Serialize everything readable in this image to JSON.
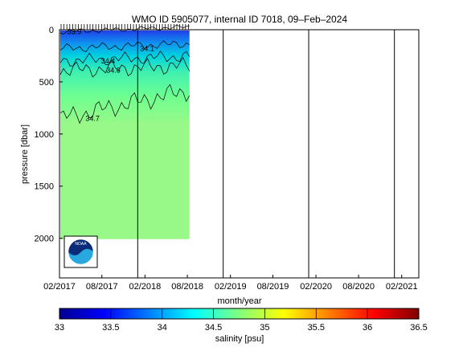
{
  "chart_data": {
    "type": "heatmap",
    "title": "WMO ID 5905077, internal ID 7018, 09–Feb–2024",
    "xlabel": "month/year",
    "ylabel": "pressure [dbar]",
    "xlim": [
      "2017-02-01",
      "2021-04-15"
    ],
    "ylim": [
      2380,
      0
    ],
    "x_ticks": [
      "02/2017",
      "08/2017",
      "02/2018",
      "08/2018",
      "02/2019",
      "08/2019",
      "02/2020",
      "08/2020",
      "02/2021"
    ],
    "y_ticks": [
      0,
      500,
      1000,
      1500,
      2000
    ],
    "year_boundaries": [
      "2018-01-01",
      "2019-01-01",
      "2020-01-01",
      "2021-01-01"
    ],
    "data_extent": {
      "start": "2017-02-01",
      "end": "2018-08-10",
      "max_pressure": 2000
    },
    "contours": [
      {
        "label": "33.9",
        "pressure": 20
      },
      {
        "label": "34.1",
        "pressure": 180
      },
      {
        "label": "34.4",
        "pressure": 300
      },
      {
        "label": "34.6",
        "pressure": 390
      },
      {
        "label": "34.7",
        "pressure": 850
      }
    ],
    "colorbar": {
      "label": "salinity [psu]",
      "min": 33,
      "max": 36.5,
      "ticks": [
        "33",
        "33.5",
        "34",
        "34.5",
        "35",
        "35.5",
        "36",
        "36.5"
      ]
    }
  },
  "logo": {
    "text": "NOAA"
  }
}
